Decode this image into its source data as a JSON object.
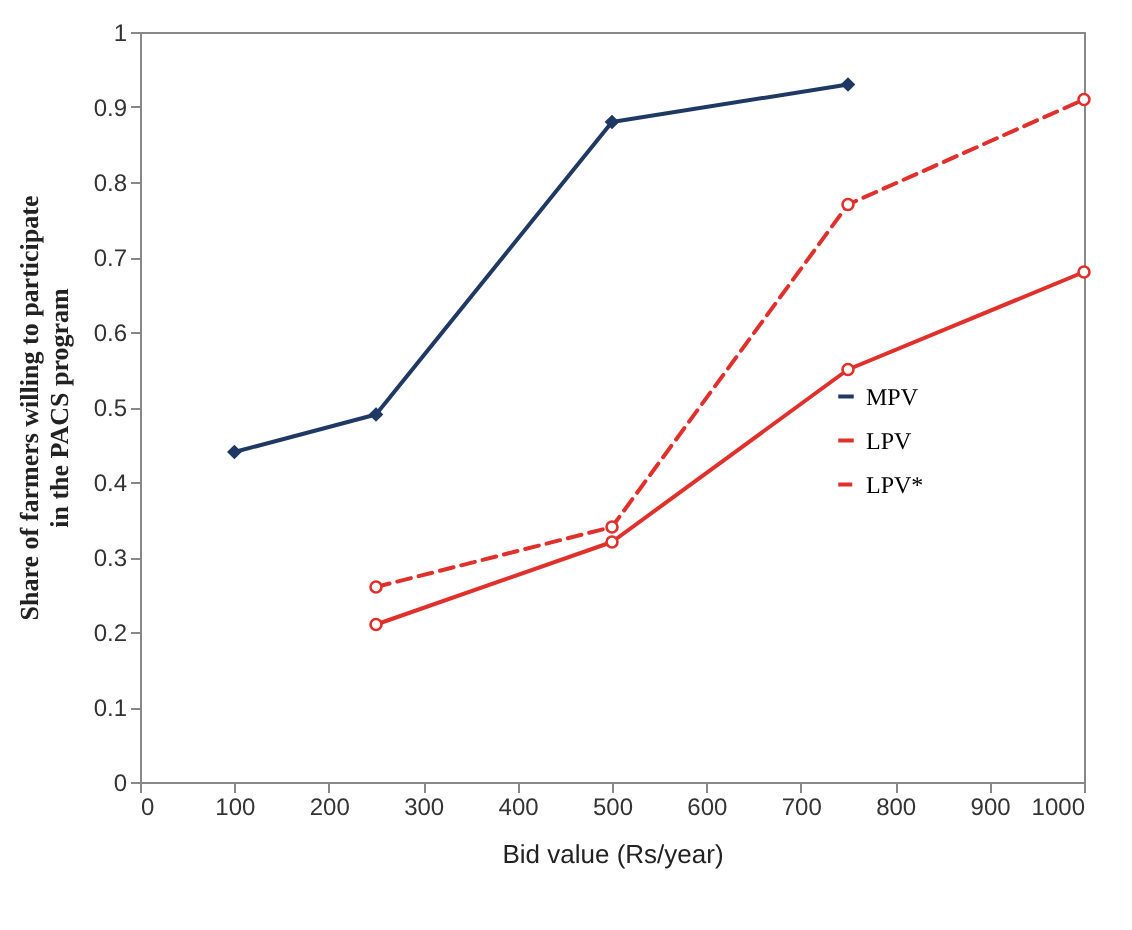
{
  "chart_data": {
    "type": "line",
    "xlabel": "Bid value (Rs/year)",
    "ylabel": "Share of farmers willing to participate in the PACS program",
    "xlim": [
      0,
      1000
    ],
    "xticks": [
      0,
      100,
      200,
      300,
      400,
      500,
      600,
      700,
      800,
      900,
      1000
    ],
    "ylim": [
      0,
      1
    ],
    "yticks": [
      0,
      0.1,
      0.2,
      0.3,
      0.4,
      0.5,
      0.6,
      0.7,
      0.8,
      0.9,
      1
    ],
    "grid": false,
    "legend": "right",
    "series": [
      {
        "name": "MPV",
        "color": "#1f3864",
        "marker": "diamond",
        "line_style": "solid",
        "x": [
          100,
          250,
          500,
          750
        ],
        "values": [
          0.44,
          0.49,
          0.88,
          0.93
        ]
      },
      {
        "name": "LPV",
        "color": "#e0302c",
        "marker": "circle",
        "line_style": "solid",
        "x": [
          250,
          500,
          750,
          1000
        ],
        "values": [
          0.21,
          0.32,
          0.55,
          0.68
        ]
      },
      {
        "name": "LPV*",
        "color": "#e0302c",
        "marker": "circle",
        "line_style": "dashed",
        "x": [
          250,
          500,
          750,
          1000
        ],
        "values": [
          0.26,
          0.34,
          0.77,
          0.91
        ]
      }
    ]
  }
}
